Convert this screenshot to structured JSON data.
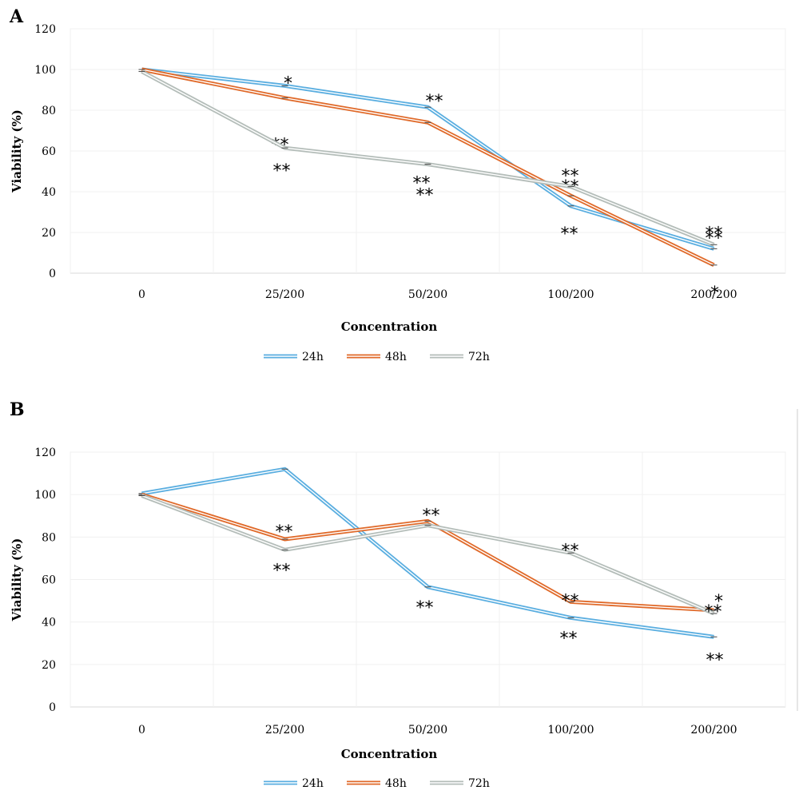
{
  "chart_data": [
    {
      "panel": "A",
      "type": "line",
      "categories": [
        "0",
        "25/200",
        "50/200",
        "100/200",
        "200/200"
      ],
      "xlabel": "Concentration",
      "ylabel": "Viability (%)",
      "ylim": [
        0,
        120
      ],
      "yticks": [
        0,
        20,
        40,
        60,
        80,
        100,
        120
      ],
      "grid": true,
      "legend_position": "bottom",
      "series": [
        {
          "name": "24h",
          "color": "#5aaee0",
          "values": [
            100,
            92,
            81.5,
            33,
            12
          ],
          "annotations": [
            "",
            "*",
            "**",
            "**",
            "**"
          ]
        },
        {
          "name": "48h",
          "color": "#e06a2a",
          "values": [
            100,
            86,
            74,
            38,
            4
          ],
          "annotations": [
            "",
            "**",
            "**",
            "**",
            "*"
          ]
        },
        {
          "name": "72h",
          "color": "#b4bdb9",
          "values": [
            99,
            61.5,
            53.5,
            42.5,
            14
          ],
          "annotations": [
            "",
            "**",
            "**",
            "**",
            "**"
          ]
        }
      ]
    },
    {
      "panel": "B",
      "type": "line",
      "categories": [
        "0",
        "25/200",
        "50/200",
        "100/200",
        "200/200"
      ],
      "xlabel": "Concentration",
      "ylabel": "Viability (%)",
      "ylim": [
        0,
        120
      ],
      "yticks": [
        0,
        20,
        40,
        60,
        80,
        100,
        120
      ],
      "grid": true,
      "legend_position": "bottom",
      "series": [
        {
          "name": "24h",
          "color": "#5aaee0",
          "values": [
            100.5,
            112,
            56.5,
            42,
            33
          ],
          "annotations": [
            "",
            "",
            "**",
            "**",
            "**"
          ]
        },
        {
          "name": "48h",
          "color": "#e06a2a",
          "values": [
            100,
            79,
            87.5,
            49.5,
            45.5
          ],
          "annotations": [
            "",
            "**",
            "**",
            "**",
            "*"
          ]
        },
        {
          "name": "72h",
          "color": "#b4bdb9",
          "values": [
            99.5,
            74,
            85.5,
            72.5,
            44
          ],
          "annotations": [
            "",
            "**",
            "",
            "**",
            "**"
          ]
        }
      ]
    }
  ]
}
